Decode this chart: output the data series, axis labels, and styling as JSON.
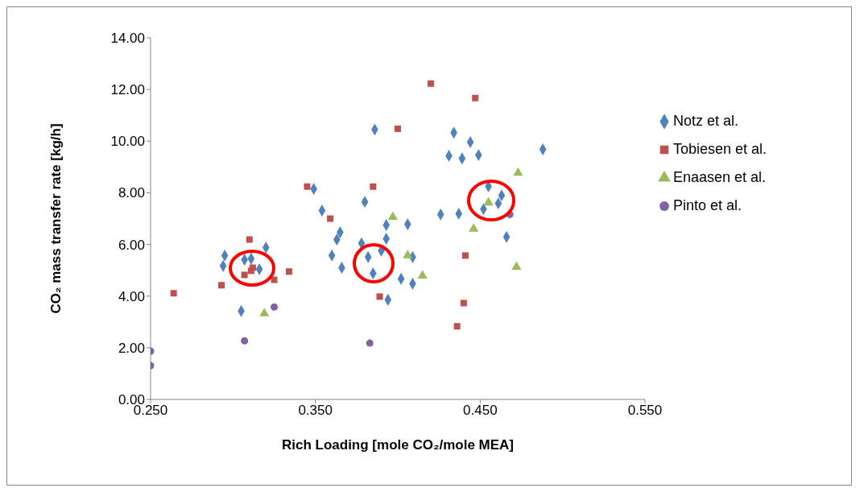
{
  "chart_data": {
    "type": "scatter",
    "xlabel": "Rich Loading [mole CO₂/mole MEA]",
    "ylabel": "CO₂ mass transfer rate [kg/h]",
    "xlim": [
      0.25,
      0.55
    ],
    "xticks": [
      {
        "value": 0.25,
        "label": "0.250"
      },
      {
        "value": 0.35,
        "label": "0.350"
      },
      {
        "value": 0.45,
        "label": "0.450"
      },
      {
        "value": 0.55,
        "label": "0.550"
      }
    ],
    "ylim": [
      0,
      14
    ],
    "yticks": [
      {
        "value": 0,
        "label": "0.00"
      },
      {
        "value": 2,
        "label": "2.00"
      },
      {
        "value": 4,
        "label": "4.00"
      },
      {
        "value": 6,
        "label": "6.00"
      },
      {
        "value": 8,
        "label": "8.00"
      },
      {
        "value": 10,
        "label": "10.00"
      },
      {
        "value": 12,
        "label": "12.00"
      },
      {
        "value": 14,
        "label": "14.00"
      }
    ],
    "grid": false,
    "legend": "right",
    "series": [
      {
        "name": "Notz et al.",
        "color": "#4f81bd",
        "marker": "diamond",
        "x": [
          0.295,
          0.294,
          0.305,
          0.307,
          0.311,
          0.316,
          0.32,
          0.386,
          0.349,
          0.38,
          0.354,
          0.365,
          0.363,
          0.36,
          0.366,
          0.393,
          0.406,
          0.393,
          0.378,
          0.382,
          0.39,
          0.385,
          0.409,
          0.402,
          0.409,
          0.394,
          0.426,
          0.437,
          0.434,
          0.444,
          0.431,
          0.439,
          0.449,
          0.488,
          0.455,
          0.463,
          0.452,
          0.461,
          0.466
        ],
        "values": [
          5.57,
          5.17,
          3.42,
          5.41,
          5.45,
          5.04,
          5.88,
          10.45,
          8.15,
          7.65,
          7.31,
          6.47,
          6.19,
          5.57,
          5.1,
          6.75,
          6.78,
          6.22,
          6.04,
          5.51,
          5.76,
          4.88,
          5.51,
          4.67,
          4.48,
          3.86,
          7.16,
          7.19,
          10.33,
          9.96,
          9.43,
          9.33,
          9.46,
          9.68,
          8.25,
          7.9,
          7.37,
          7.59,
          6.29
        ]
      },
      {
        "name": "Tobiesen et al.",
        "color": "#c0504d",
        "marker": "square",
        "x": [
          0.264,
          0.293,
          0.31,
          0.307,
          0.311,
          0.312,
          0.325,
          0.334,
          0.345,
          0.385,
          0.359,
          0.389,
          0.4,
          0.42,
          0.447,
          0.441,
          0.44,
          0.436
        ],
        "values": [
          4.11,
          4.42,
          6.19,
          4.82,
          4.98,
          5.1,
          4.63,
          4.95,
          8.24,
          8.24,
          7.0,
          3.98,
          10.48,
          12.23,
          11.67,
          5.57,
          3.73,
          2.83
        ]
      },
      {
        "name": "Enaasen et al.",
        "color": "#9bbb59",
        "marker": "triangle",
        "x": [
          0.319,
          0.397,
          0.406,
          0.415,
          0.446,
          0.455,
          0.473,
          0.472
        ],
        "values": [
          3.33,
          7.06,
          5.57,
          4.79,
          6.6,
          7.62,
          8.77,
          5.13
        ]
      },
      {
        "name": "Pinto et al.",
        "color": "#8064a2",
        "marker": "circle",
        "x": [
          0.25,
          0.25,
          0.307,
          0.325,
          0.383,
          0.468
        ],
        "values": [
          1.87,
          1.31,
          2.27,
          3.58,
          2.18,
          7.16
        ]
      }
    ]
  }
}
